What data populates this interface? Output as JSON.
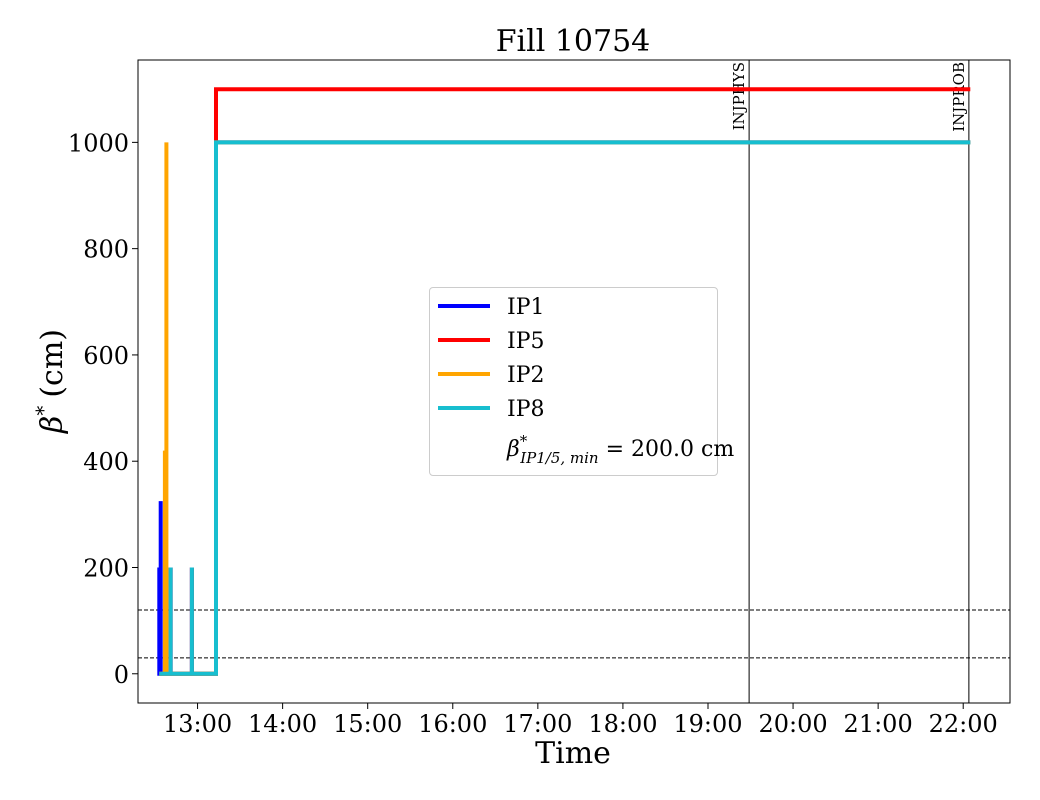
{
  "chart_data": {
    "type": "line",
    "title": "Fill 10754",
    "xlabel": "Time",
    "ylabel_symbol": "β",
    "ylabel_sup": "*",
    "ylabel_unit": "(cm)",
    "xlim": [
      "12:18",
      "22:33"
    ],
    "ylim": [
      -55,
      1155
    ],
    "x_ticks": [
      "13:00",
      "14:00",
      "15:00",
      "16:00",
      "17:00",
      "18:00",
      "19:00",
      "20:00",
      "21:00",
      "22:00"
    ],
    "y_ticks": [
      0,
      200,
      400,
      600,
      800,
      1000
    ],
    "grid": false,
    "legend_position": "center",
    "series": [
      {
        "name": "IP1",
        "color": "#0000ff",
        "points": [
          [
            "12:33",
            0
          ],
          [
            "12:33",
            200
          ],
          [
            "12:33",
            0
          ],
          [
            "12:34",
            0
          ],
          [
            "12:34",
            325
          ],
          [
            "12:34",
            0
          ],
          [
            "12:41",
            0
          ],
          [
            "12:41",
            200
          ],
          [
            "12:41",
            0
          ],
          [
            "12:56",
            0
          ],
          [
            "12:56",
            200
          ],
          [
            "12:56",
            0
          ],
          [
            "13:13",
            0
          ],
          [
            "13:13",
            1000
          ],
          [
            "22:05",
            1000
          ]
        ]
      },
      {
        "name": "IP5",
        "color": "#ff0000",
        "points": [
          [
            "12:33",
            0
          ],
          [
            "12:41",
            0
          ],
          [
            "12:41",
            200
          ],
          [
            "12:41",
            0
          ],
          [
            "12:56",
            0
          ],
          [
            "12:56",
            200
          ],
          [
            "12:56",
            0
          ],
          [
            "13:13",
            0
          ],
          [
            "13:13",
            1100
          ],
          [
            "22:05",
            1100
          ]
        ]
      },
      {
        "name": "IP2",
        "color": "#ffa500",
        "points": [
          [
            "12:33",
            0
          ],
          [
            "12:37",
            0
          ],
          [
            "12:37",
            420
          ],
          [
            "12:37",
            0
          ],
          [
            "12:38",
            0
          ],
          [
            "12:38",
            1000
          ],
          [
            "12:38",
            0
          ],
          [
            "13:13",
            0
          ],
          [
            "13:13",
            1000
          ],
          [
            "22:05",
            1000
          ]
        ]
      },
      {
        "name": "IP8",
        "color": "#17becf",
        "points": [
          [
            "12:33",
            0
          ],
          [
            "12:41",
            0
          ],
          [
            "12:41",
            200
          ],
          [
            "12:41",
            0
          ],
          [
            "12:56",
            0
          ],
          [
            "12:56",
            200
          ],
          [
            "12:56",
            0
          ],
          [
            "13:13",
            0
          ],
          [
            "13:13",
            1000
          ],
          [
            "22:05",
            1000
          ]
        ]
      }
    ],
    "legend_extra": {
      "symbol": "β",
      "sup": "*",
      "sub": "IP1/5, min",
      "text": " = 200.0 cm"
    },
    "hlines": [
      120,
      30
    ],
    "vlines": [
      {
        "x": "19:29",
        "label": "INJPHYS"
      },
      {
        "x": "22:04",
        "label": "INJPROB"
      }
    ]
  }
}
